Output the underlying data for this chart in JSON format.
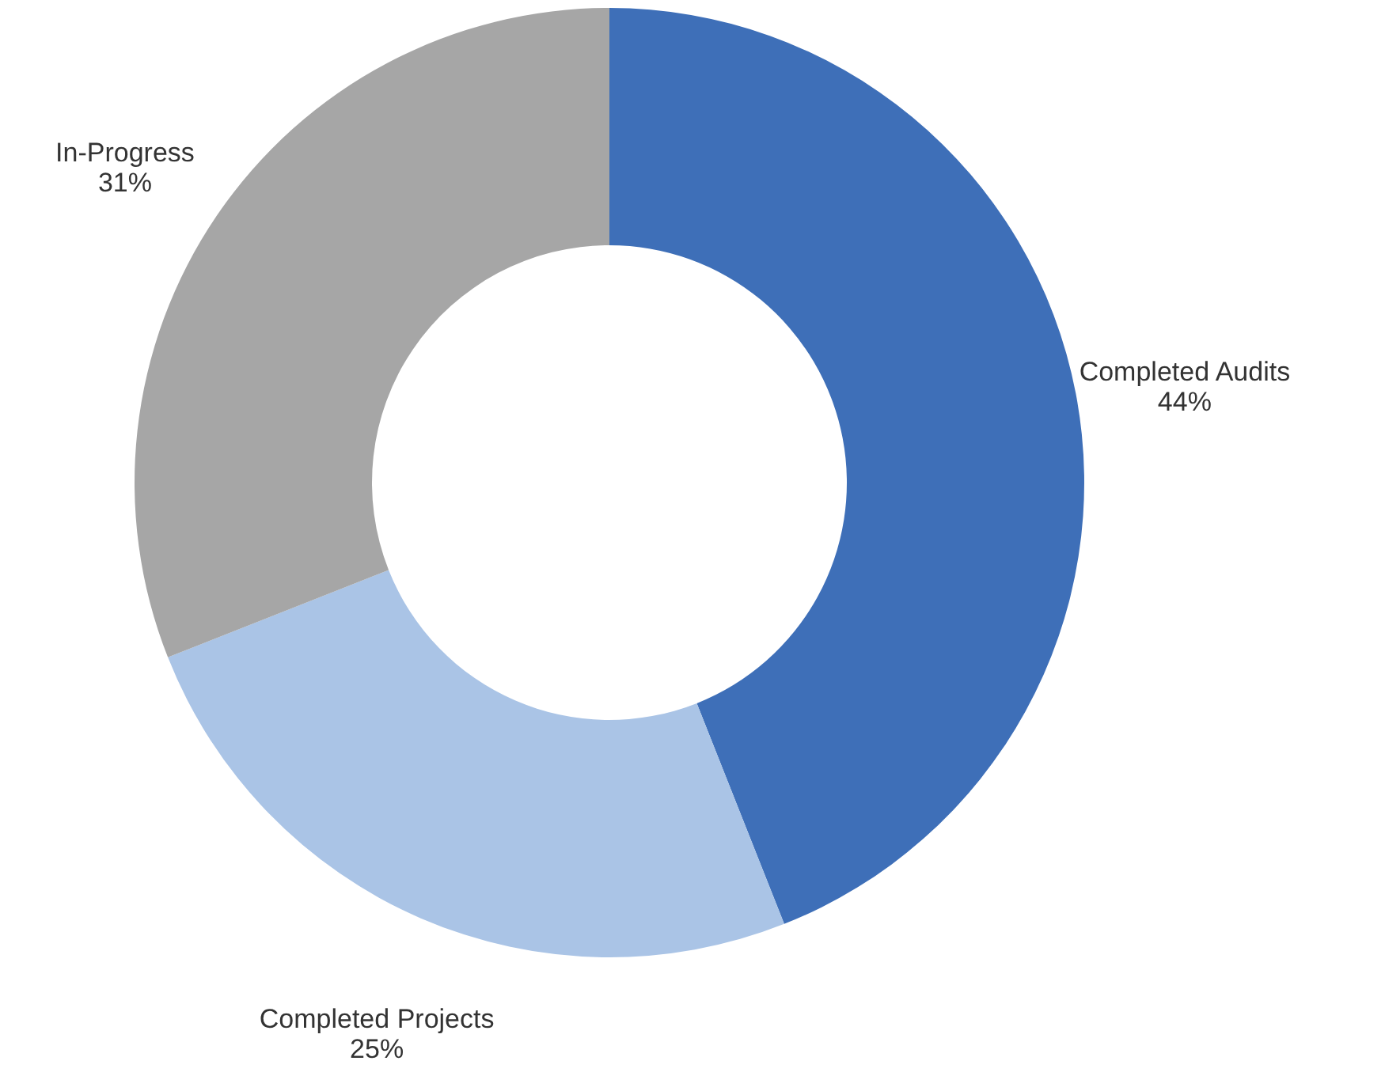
{
  "chart_data": {
    "type": "donut",
    "categories": [
      "Completed Audits",
      "Completed Projects",
      "In-Progress"
    ],
    "values": [
      44,
      25,
      31
    ],
    "colors": [
      "#3e6fb8",
      "#aac4e6",
      "#a6a6a6"
    ],
    "value_labels": [
      "44%",
      "25%",
      "31%"
    ]
  }
}
